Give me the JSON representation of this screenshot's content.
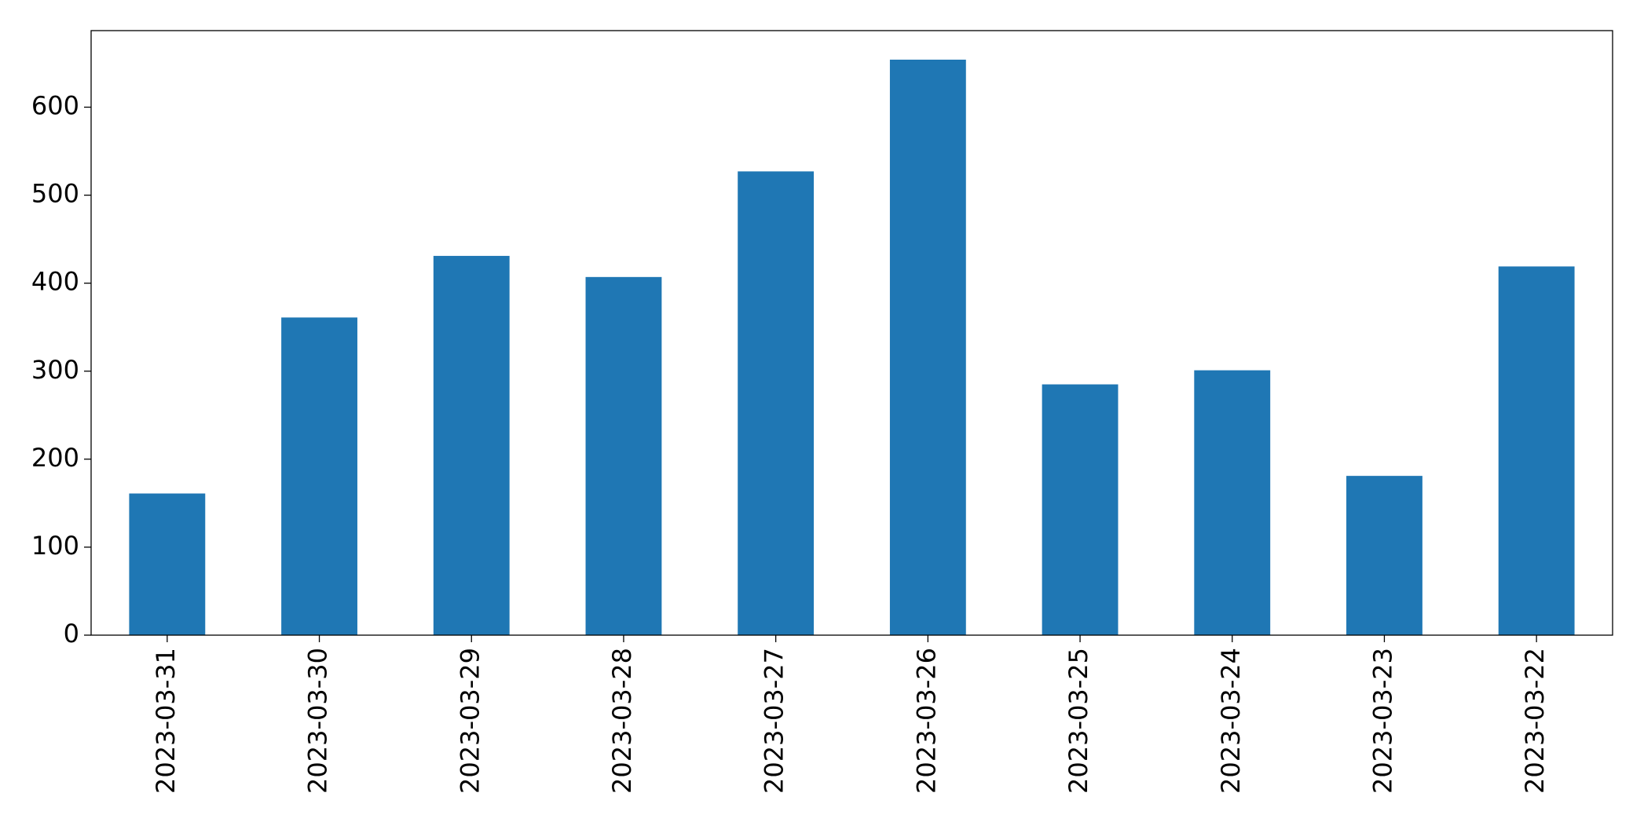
{
  "chart_data": {
    "type": "bar",
    "categories": [
      "2023-03-31",
      "2023-03-30",
      "2023-03-29",
      "2023-03-28",
      "2023-03-27",
      "2023-03-26",
      "2023-03-25",
      "2023-03-24",
      "2023-03-23",
      "2023-03-22"
    ],
    "values": [
      161,
      361,
      431,
      407,
      527,
      654,
      285,
      301,
      181,
      419
    ],
    "color": "#1f77b4",
    "ylim": [
      0,
      687
    ],
    "yticks": [
      0,
      100,
      200,
      300,
      400,
      500,
      600
    ],
    "grid": false
  }
}
